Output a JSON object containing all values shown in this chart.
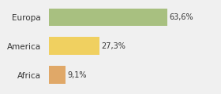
{
  "categories": [
    "Europa",
    "America",
    "Africa"
  ],
  "values": [
    63.6,
    27.3,
    9.1
  ],
  "labels": [
    "63,6%",
    "27,3%",
    "9,1%"
  ],
  "bar_colors": [
    "#a8c080",
    "#f0d060",
    "#e0a868"
  ],
  "background_color": "#f0f0f0",
  "figsize": [
    2.8,
    1.2
  ],
  "dpi": 100,
  "xlim": [
    0,
    78
  ],
  "bar_height": 0.62,
  "label_fontsize": 7.0,
  "ytick_fontsize": 7.5
}
